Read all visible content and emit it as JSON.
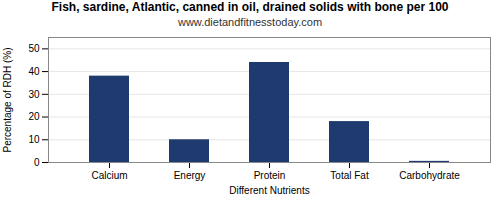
{
  "chart_data": {
    "type": "bar",
    "title": "Fish, sardine, Atlantic, canned in oil, drained solids with bone per 100",
    "subtitle": "www.dietandfitnesstoday.com",
    "xlabel": "Different Nutrients",
    "ylabel": "Percentage of RDH (%)",
    "categories": [
      "Calcium",
      "Energy",
      "Protein",
      "Total Fat",
      "Carbohydrate"
    ],
    "values": [
      38,
      10,
      44,
      18,
      0.5
    ],
    "color": "#1f3a6e",
    "ylim": [
      0,
      55
    ],
    "yticks": [
      0,
      10,
      20,
      30,
      40,
      50
    ],
    "grid": true
  }
}
